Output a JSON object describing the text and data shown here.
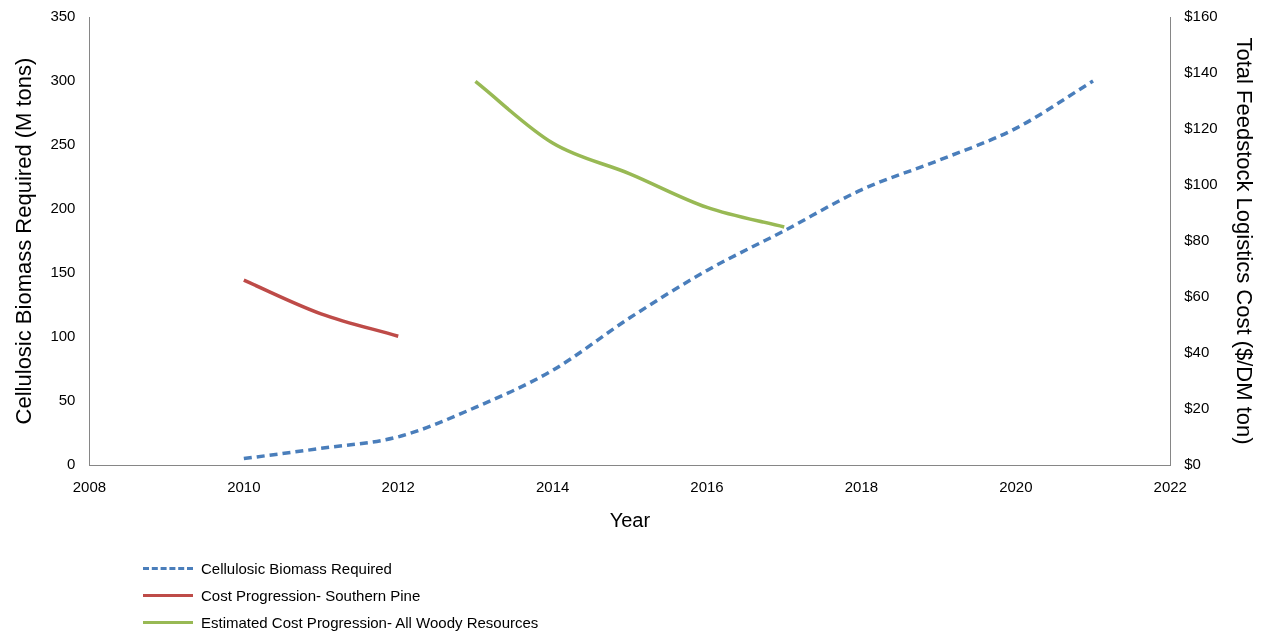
{
  "chart_data": {
    "type": "line",
    "xlabel": "Year",
    "ylabel": "Cellulosic Biomass Required (M tons)",
    "y2label": "Total Feedstock Logistics Cost ($/DM ton)",
    "xlim": [
      2008,
      2022
    ],
    "xticks": [
      2008,
      2010,
      2012,
      2014,
      2016,
      2018,
      2020,
      2022
    ],
    "ylim": [
      0,
      350
    ],
    "yticks": [
      0,
      50,
      100,
      150,
      200,
      250,
      300,
      350
    ],
    "y2lim": [
      0,
      160
    ],
    "y2ticks": [
      {
        "value": 0,
        "label": "$0"
      },
      {
        "value": 20,
        "label": "$20"
      },
      {
        "value": 40,
        "label": "$40"
      },
      {
        "value": 60,
        "label": "$60"
      },
      {
        "value": 80,
        "label": "$80"
      },
      {
        "value": 100,
        "label": "$100"
      },
      {
        "value": 120,
        "label": "$120"
      },
      {
        "value": 140,
        "label": "$140"
      },
      {
        "value": 160,
        "label": "$160"
      }
    ],
    "grid": false,
    "legend": "bottom",
    "marker": "none",
    "series": [
      {
        "name": "Cellulosic Biomass Required",
        "color": "#4a7ebb",
        "line_style": "dashed",
        "x": [
          2010,
          2011,
          2012,
          2013,
          2014,
          2015,
          2016,
          2017,
          2018,
          2019,
          2020,
          2021
        ],
        "values": [
          5,
          13,
          22,
          45,
          74,
          115,
          152,
          183,
          215,
          238,
          263,
          300
        ]
      },
      {
        "name": "Cost Progression- Southern Pine",
        "color": "#be4b48",
        "line_style": "solid",
        "axis": "y2",
        "x": [
          2010,
          2011,
          2012
        ],
        "values": [
          66,
          54,
          46
        ]
      },
      {
        "name": "Estimated Cost Progression- All Woody Resources",
        "color": "#98b954",
        "line_style": "solid",
        "axis": "y2",
        "x": [
          2013,
          2014,
          2015,
          2016,
          2017
        ],
        "values": [
          137,
          115,
          104,
          92,
          85
        ]
      }
    ]
  }
}
